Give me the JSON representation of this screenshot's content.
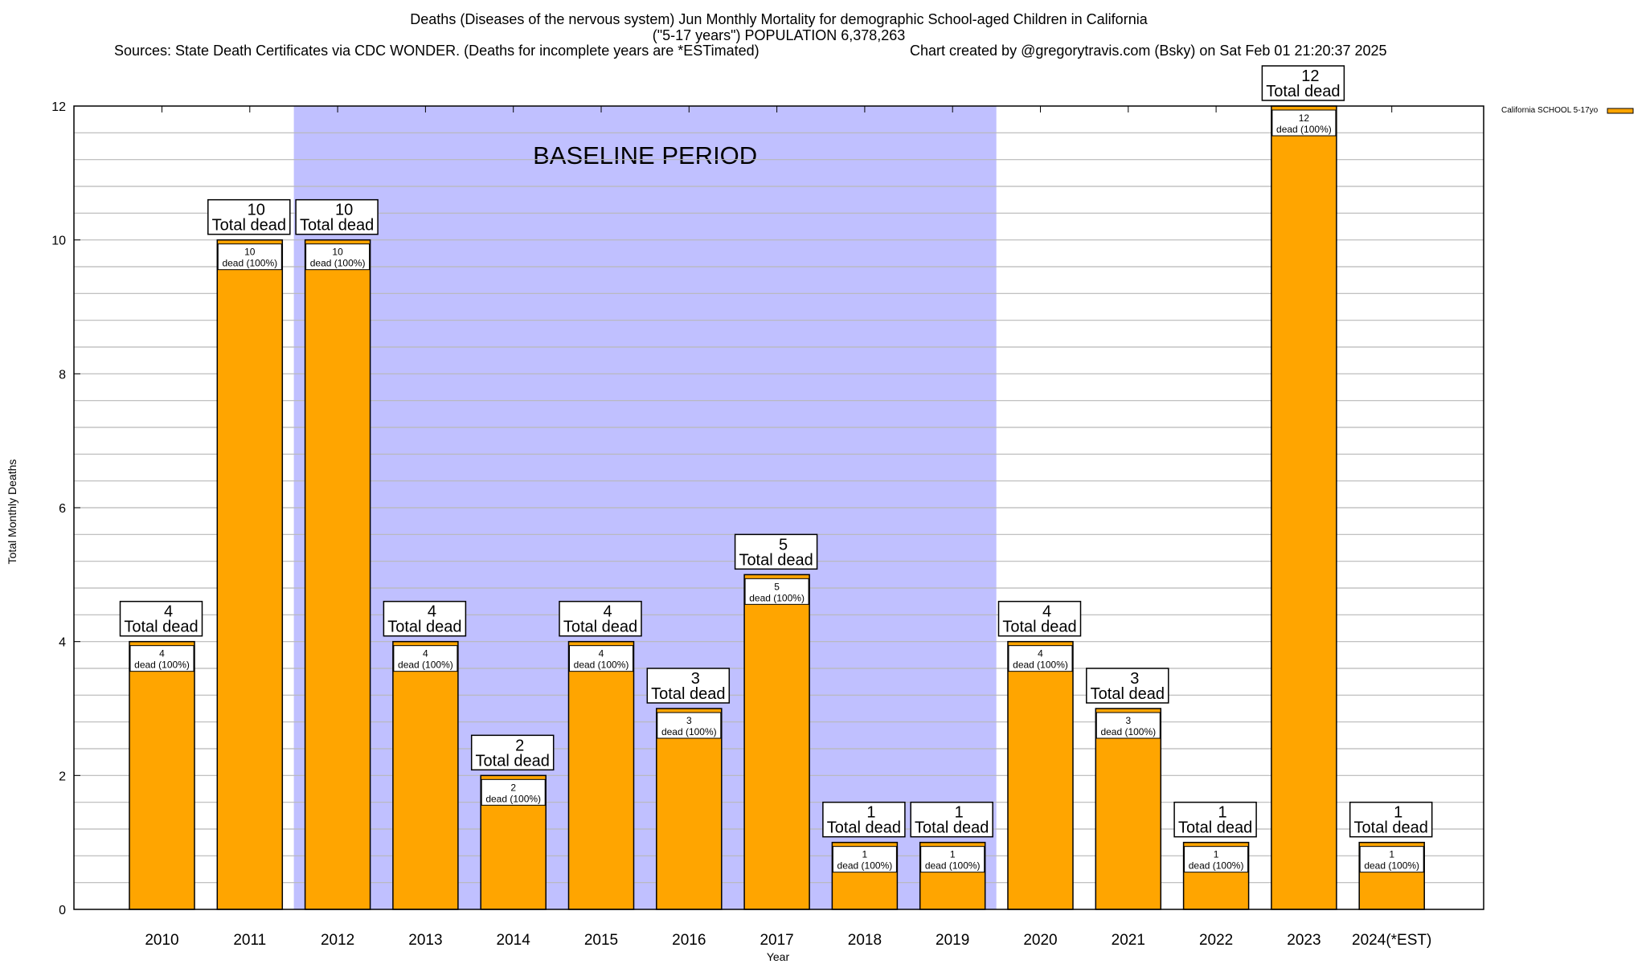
{
  "chart_data": {
    "type": "bar",
    "title": "Deaths (Diseases of the nervous system) Jun Monthly Mortality for demographic School-aged Children in California",
    "subtitle": "(\"5-17 years\") POPULATION 6,378,263",
    "sources": "Sources: State Death Certificates via CDC WONDER. (Deaths for incomplete years are *ESTimated)",
    "credit": "Chart created by @gregorytravis.com (Bsky) on Sat Feb 01 21:20:37 2025",
    "xlabel": "Year",
    "ylabel": "Total Monthly Deaths",
    "ylim": [
      0,
      12
    ],
    "yticks": [
      0,
      2,
      4,
      6,
      8,
      10,
      12
    ],
    "grid": true,
    "categories": [
      "2010",
      "2011",
      "2012",
      "2013",
      "2014",
      "2015",
      "2016",
      "2017",
      "2018",
      "2019",
      "2020",
      "2021",
      "2022",
      "2023",
      "2024(*EST)"
    ],
    "series": [
      {
        "name": "California SCHOOL 5-17yo",
        "color": "#ffa500",
        "values": [
          4,
          10,
          10,
          4,
          2,
          4,
          3,
          5,
          1,
          1,
          4,
          3,
          1,
          12,
          1
        ]
      }
    ],
    "label_total": "Total dead",
    "label_inner_suffix": "dead (100%)",
    "baseline": {
      "label": "BASELINE PERIOD",
      "from": "2012",
      "to": "2019",
      "color": "#c0c0ff"
    },
    "legend_position": "right"
  }
}
